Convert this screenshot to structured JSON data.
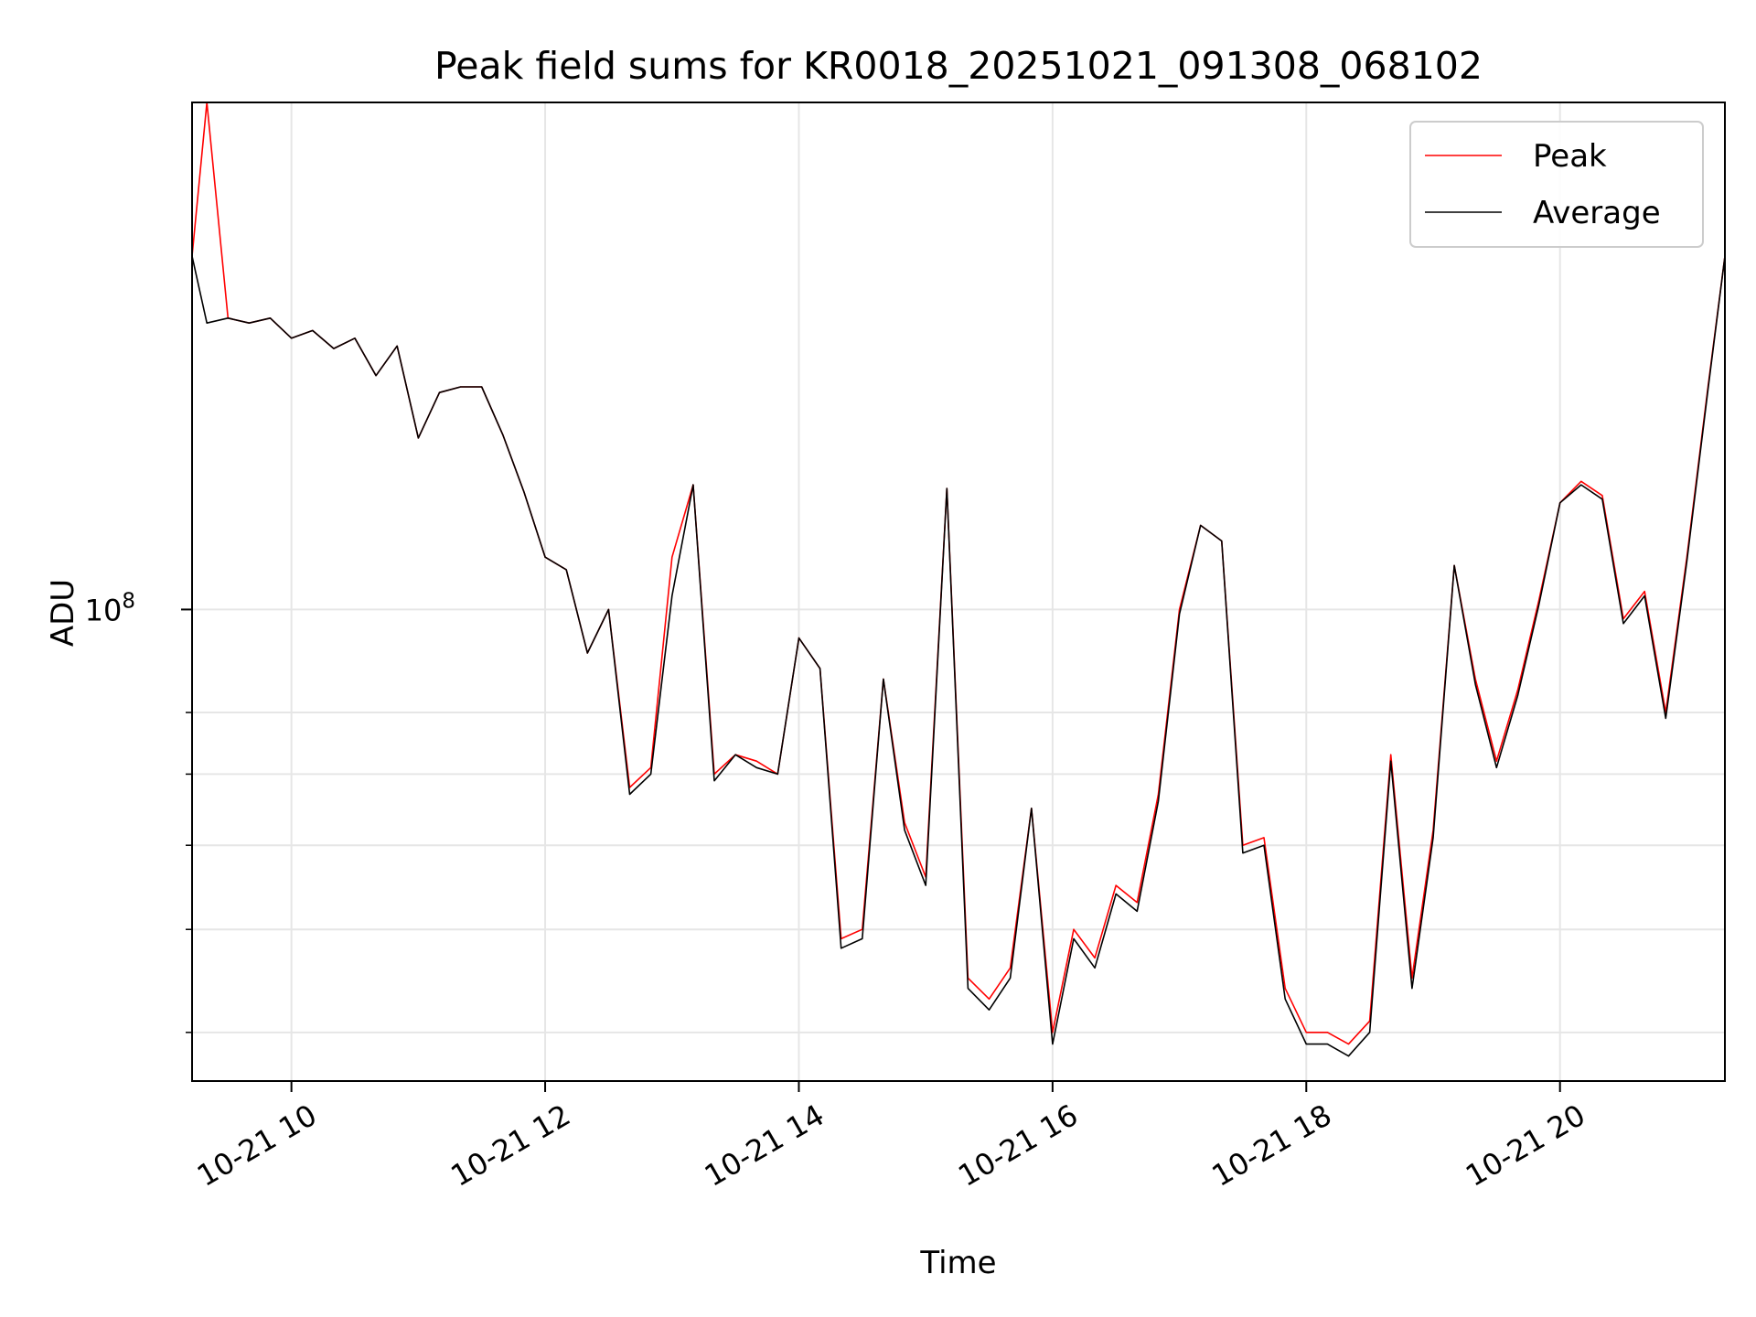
{
  "chart_data": {
    "type": "line",
    "title": "Peak field sums for KR0018_20251021_091308_068102",
    "xlabel": "Time",
    "ylabel": "ADU",
    "y_scale": "log",
    "grid": true,
    "legend_position": "top-right",
    "xlim": [
      "2025-10-21 09:13",
      "2025-10-21 21:18"
    ],
    "ylim": [
      36000000,
      300000000
    ],
    "x_ticks": [
      {
        "value": "2025-10-21 10:00",
        "label": "10-21 10"
      },
      {
        "value": "2025-10-21 12:00",
        "label": "10-21 12"
      },
      {
        "value": "2025-10-21 14:00",
        "label": "10-21 14"
      },
      {
        "value": "2025-10-21 16:00",
        "label": "10-21 16"
      },
      {
        "value": "2025-10-21 18:00",
        "label": "10-21 18"
      },
      {
        "value": "2025-10-21 20:00",
        "label": "10-21 20"
      }
    ],
    "y_major_ticks": [
      {
        "value": 100000000,
        "label_base": "10",
        "label_exp": "8"
      }
    ],
    "y_minor_ticks": [
      40000000,
      50000000,
      60000000,
      70000000,
      80000000
    ],
    "x": [
      "2025-10-21 09:13",
      "2025-10-21 09:20",
      "2025-10-21 09:30",
      "2025-10-21 09:40",
      "2025-10-21 09:50",
      "2025-10-21 10:00",
      "2025-10-21 10:10",
      "2025-10-21 10:20",
      "2025-10-21 10:30",
      "2025-10-21 10:40",
      "2025-10-21 10:50",
      "2025-10-21 11:00",
      "2025-10-21 11:10",
      "2025-10-21 11:20",
      "2025-10-21 11:30",
      "2025-10-21 11:40",
      "2025-10-21 11:50",
      "2025-10-21 12:00",
      "2025-10-21 12:10",
      "2025-10-21 12:20",
      "2025-10-21 12:30",
      "2025-10-21 12:40",
      "2025-10-21 12:50",
      "2025-10-21 13:00",
      "2025-10-21 13:10",
      "2025-10-21 13:20",
      "2025-10-21 13:30",
      "2025-10-21 13:40",
      "2025-10-21 13:50",
      "2025-10-21 14:00",
      "2025-10-21 14:10",
      "2025-10-21 14:20",
      "2025-10-21 14:30",
      "2025-10-21 14:40",
      "2025-10-21 14:50",
      "2025-10-21 15:00",
      "2025-10-21 15:10",
      "2025-10-21 15:20",
      "2025-10-21 15:30",
      "2025-10-21 15:40",
      "2025-10-21 15:50",
      "2025-10-21 16:00",
      "2025-10-21 16:10",
      "2025-10-21 16:20",
      "2025-10-21 16:30",
      "2025-10-21 16:40",
      "2025-10-21 16:50",
      "2025-10-21 17:00",
      "2025-10-21 17:10",
      "2025-10-21 17:20",
      "2025-10-21 17:30",
      "2025-10-21 17:40",
      "2025-10-21 17:50",
      "2025-10-21 18:00",
      "2025-10-21 18:10",
      "2025-10-21 18:20",
      "2025-10-21 18:30",
      "2025-10-21 18:40",
      "2025-10-21 18:50",
      "2025-10-21 19:00",
      "2025-10-21 19:10",
      "2025-10-21 19:20",
      "2025-10-21 19:30",
      "2025-10-21 19:40",
      "2025-10-21 19:50",
      "2025-10-21 20:00",
      "2025-10-21 20:10",
      "2025-10-21 20:20",
      "2025-10-21 20:30",
      "2025-10-21 20:40",
      "2025-10-21 20:50",
      "2025-10-21 21:00",
      "2025-10-21 21:10",
      "2025-10-21 21:18"
    ],
    "series": [
      {
        "name": "Peak",
        "color": "#ff0000",
        "values": [
          215000000,
          300000000,
          188000000,
          186000000,
          188000000,
          180000000,
          183000000,
          176000000,
          180000000,
          166000000,
          177000000,
          145000000,
          160000000,
          162000000,
          162000000,
          146000000,
          129000000,
          112000000,
          109000000,
          91000000,
          100000000,
          68000000,
          71000000,
          112000000,
          131000000,
          70000000,
          73000000,
          72000000,
          70000000,
          94000000,
          88000000,
          49000000,
          50000000,
          86000000,
          63000000,
          56000000,
          130000000,
          45000000,
          43000000,
          46000000,
          65000000,
          40000000,
          50000000,
          47000000,
          55000000,
          53000000,
          67000000,
          100000000,
          120000000,
          116000000,
          60000000,
          61000000,
          44000000,
          40000000,
          40000000,
          39000000,
          41000000,
          73000000,
          45000000,
          62000000,
          110000000,
          86000000,
          72000000,
          84000000,
          102000000,
          126000000,
          132000000,
          128000000,
          98000000,
          104000000,
          80000000,
          112000000,
          162000000,
          215000000
        ]
      },
      {
        "name": "Average",
        "color": "#000000",
        "values": [
          215000000,
          186000000,
          188000000,
          186000000,
          188000000,
          180000000,
          183000000,
          176000000,
          180000000,
          166000000,
          177000000,
          145000000,
          160000000,
          162000000,
          162000000,
          146000000,
          129000000,
          112000000,
          109000000,
          91000000,
          100000000,
          67000000,
          70000000,
          103000000,
          131000000,
          69000000,
          73000000,
          71000000,
          70000000,
          94000000,
          88000000,
          48000000,
          49000000,
          86000000,
          62000000,
          55000000,
          130000000,
          44000000,
          42000000,
          45000000,
          65000000,
          39000000,
          49000000,
          46000000,
          54000000,
          52000000,
          66000000,
          99000000,
          120000000,
          116000000,
          59000000,
          60000000,
          43000000,
          39000000,
          39000000,
          38000000,
          40000000,
          72000000,
          44000000,
          61000000,
          110000000,
          85000000,
          71000000,
          83000000,
          101000000,
          126000000,
          131000000,
          127000000,
          97000000,
          103000000,
          79000000,
          111000000,
          161000000,
          215000000
        ]
      }
    ]
  }
}
